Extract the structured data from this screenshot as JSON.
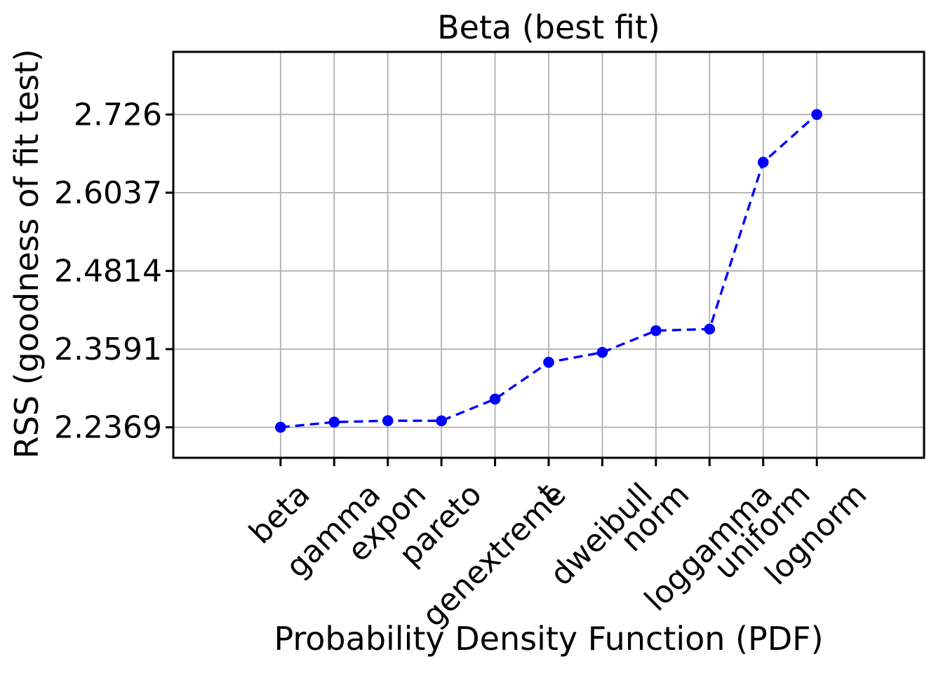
{
  "figure": {
    "background": "#ffffff"
  },
  "chart_data": {
    "type": "line",
    "title": "Beta (best fit)",
    "xlabel": "Probability Density Function (PDF)",
    "ylabel": "RSS (goodness of fit test)",
    "categories": [
      "beta",
      "gamma",
      "expon",
      "pareto",
      "genextreme",
      "t",
      "dweibull",
      "norm",
      "loggamma",
      "uniform",
      "lognorm"
    ],
    "values": [
      2.2369,
      2.245,
      2.2472,
      2.247,
      2.281,
      2.3385,
      2.354,
      2.388,
      2.3905,
      2.6513,
      2.726
    ],
    "yticks": [
      2.2369,
      2.3591,
      2.4814,
      2.6037,
      2.726
    ],
    "ytick_labels": [
      "2.2369",
      "2.3591",
      "2.4814",
      "2.6037",
      "2.726"
    ],
    "ylim": [
      2.1892,
      2.8239
    ],
    "xlim": [
      -2,
      12
    ],
    "grid": true,
    "legend": "none",
    "line_color": "#0000ff",
    "line_style": "dashed",
    "marker": "circle",
    "grid_color": "#b0b0b0",
    "axis_color": "#000000"
  }
}
